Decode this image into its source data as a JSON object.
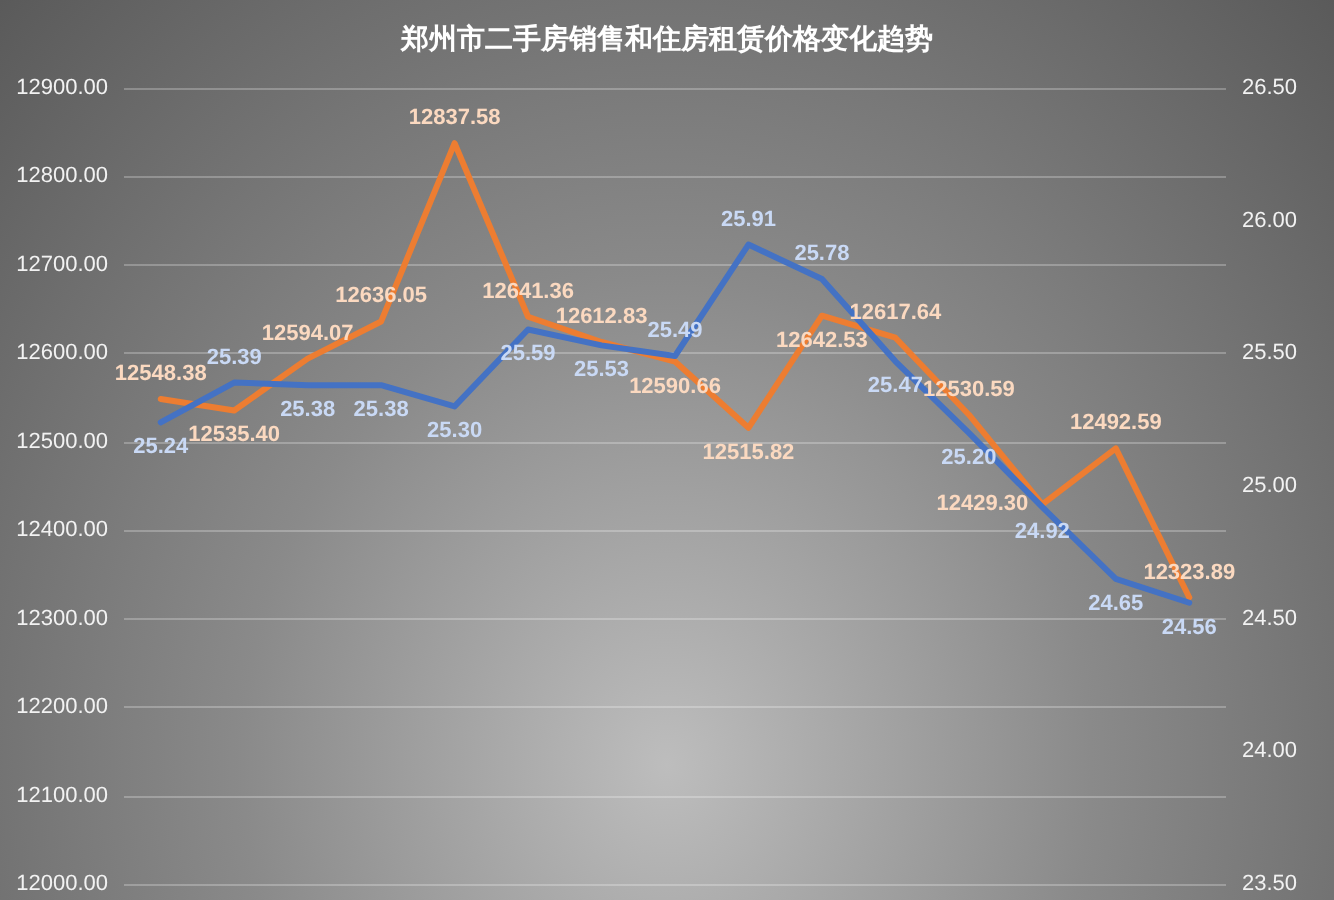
{
  "chart_data": {
    "type": "line",
    "title": "郑州市二手房销售和住房租赁价格变化趋势",
    "categories": [
      null,
      null,
      null,
      null,
      null,
      null,
      null,
      null,
      null,
      null,
      null,
      null,
      null,
      null,
      null
    ],
    "series": [
      {
        "color": "#ed7d31",
        "values": [
          12548.38,
          12535.4,
          12594.07,
          12636.05,
          12837.58,
          12641.36,
          12612.83,
          12590.66,
          12515.82,
          12642.53,
          12617.64,
          12530.59,
          12429.3,
          12492.59,
          12323.89
        ],
        "value_labels": [
          "12548.38",
          "12535.40",
          "12594.07",
          "12636.05",
          "12837.58",
          "12641.36",
          "12612.83",
          "12590.66",
          "12515.82",
          "12642.53",
          "12617.64",
          "12530.59",
          "12429.30",
          "12492.59",
          "12323.89"
        ]
      },
      {
        "color": "#4472c4",
        "axis": "y2",
        "values": [
          25.24,
          25.39,
          25.38,
          25.38,
          25.3,
          25.59,
          25.53,
          25.49,
          25.91,
          25.78,
          25.47,
          25.2,
          24.92,
          24.65,
          24.56
        ],
        "value_labels": [
          "25.24",
          "25.39",
          "25.38",
          "25.38",
          "25.30",
          "25.59",
          "25.53",
          "25.49",
          "25.91",
          "25.78",
          "25.47",
          "25.20",
          "24.92",
          "24.65",
          "24.56"
        ]
      }
    ],
    "ylim": [
      12000,
      12900
    ],
    "yticks": [
      {
        "value": 12000,
        "label": "12000.00"
      },
      {
        "value": 12100,
        "label": "12100.00"
      },
      {
        "value": 12200,
        "label": "12200.00"
      },
      {
        "value": 12300,
        "label": "12300.00"
      },
      {
        "value": 12400,
        "label": "12400.00"
      },
      {
        "value": 12500,
        "label": "12500.00"
      },
      {
        "value": 12600,
        "label": "12600.00"
      },
      {
        "value": 12700,
        "label": "12700.00"
      },
      {
        "value": 12800,
        "label": "12800.00"
      },
      {
        "value": 12900,
        "label": "12900.00"
      }
    ],
    "y2lim": [
      23.5,
      26.5
    ],
    "y2ticks": [
      {
        "value": 23.5,
        "label": "23.50"
      },
      {
        "value": 24,
        "label": "24.00"
      },
      {
        "value": 24.5,
        "label": "24.50"
      },
      {
        "value": 25,
        "label": "25.00"
      },
      {
        "value": 25.5,
        "label": "25.50"
      },
      {
        "value": 26,
        "label": "26.00"
      },
      {
        "value": 26.5,
        "label": "26.50"
      }
    ],
    "grid": "y",
    "marker": "none",
    "line_style": "solid"
  }
}
